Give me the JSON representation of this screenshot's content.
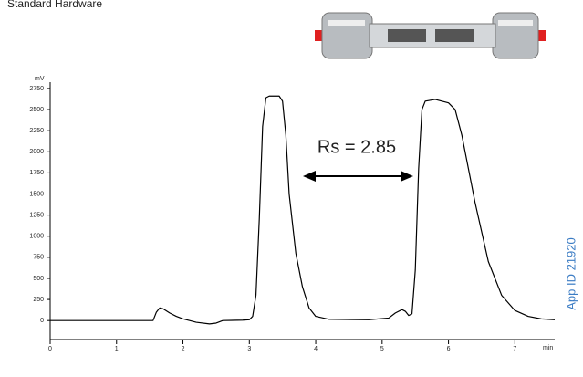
{
  "chart_data": {
    "type": "line",
    "title": "Standard Hardware",
    "y_label": "mV",
    "x_label": "min",
    "annotations": [
      "Rs = 2.85",
      "App ID 21920"
    ],
    "color": "#000000",
    "x": [
      0,
      1.55,
      1.6,
      1.65,
      1.7,
      1.8,
      1.9,
      2.0,
      2.2,
      2.4,
      2.5,
      2.6,
      2.9,
      3.0,
      3.05,
      3.1,
      3.15,
      3.2,
      3.25,
      3.3,
      3.45,
      3.5,
      3.55,
      3.6,
      3.7,
      3.8,
      3.9,
      4.0,
      4.2,
      4.8,
      5.1,
      5.2,
      5.3,
      5.35,
      5.4,
      5.45,
      5.5,
      5.55,
      5.6,
      5.65,
      5.8,
      6.0,
      6.1,
      6.2,
      6.4,
      6.6,
      6.8,
      7.0,
      7.2,
      7.4,
      7.6
    ],
    "values": [
      0,
      0,
      100,
      150,
      140,
      90,
      50,
      20,
      -20,
      -40,
      -30,
      0,
      5,
      10,
      50,
      300,
      1200,
      2300,
      2640,
      2660,
      2660,
      2600,
      2200,
      1500,
      800,
      400,
      150,
      50,
      15,
      10,
      30,
      90,
      130,
      110,
      60,
      80,
      600,
      1800,
      2500,
      2600,
      2620,
      2580,
      2500,
      2200,
      1400,
      700,
      300,
      120,
      50,
      20,
      10
    ],
    "xlim": [
      0,
      7.6
    ],
    "ylim": [
      -225,
      2825
    ],
    "xticks": [
      0,
      1,
      2,
      3,
      4,
      5,
      6,
      7
    ],
    "yticks": [
      0,
      250,
      500,
      750,
      1000,
      1250,
      1500,
      1750,
      2000,
      2250,
      2500,
      2750
    ]
  }
}
